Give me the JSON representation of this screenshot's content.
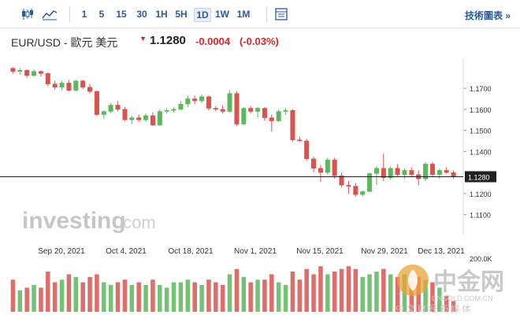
{
  "toolbar": {
    "candle_icon": "candlestick-icon",
    "area_icon": "area-chart-icon",
    "timeframes": [
      "1",
      "5",
      "15",
      "30",
      "1H",
      "5H",
      "1D",
      "1W",
      "1M"
    ],
    "active_timeframe": "1D",
    "table_icon": "table-icon",
    "tools_label": "技術圖表 »"
  },
  "header": {
    "symbol": "EUR/USD - 歐元 美元",
    "price": "1.1280",
    "change": "-0.0004",
    "change_pct": "(-0.03%)",
    "direction": "down"
  },
  "colors": {
    "up": "#5cb85c",
    "down": "#d9534f",
    "link": "#2a5b9a",
    "price_line": "#222222"
  },
  "chart_data": {
    "type": "candlestick",
    "price_axis_ticks": [
      "1.1700",
      "1.1600",
      "1.1500",
      "1.1400",
      "1.1200",
      "1.1100"
    ],
    "price_label": "1.1280",
    "volume_axis_label": "200.0K",
    "date_ticks": [
      "Sep 20, 2021",
      "Oct 4, 2021",
      "Oct 18, 2021",
      "Nov 1, 2021",
      "Nov 15, 2021",
      "Nov 29, 2021",
      "Dec 13, 2021"
    ],
    "ylim": [
      1.105,
      1.182
    ],
    "candles": [
      [
        1.1795,
        1.18,
        1.177,
        1.178
      ],
      [
        1.178,
        1.1795,
        1.1765,
        1.1785
      ],
      [
        1.1785,
        1.179,
        1.175,
        1.176
      ],
      [
        1.176,
        1.179,
        1.1755,
        1.178
      ],
      [
        1.178,
        1.1785,
        1.1755,
        1.177
      ],
      [
        1.177,
        1.1775,
        1.171,
        1.172
      ],
      [
        1.172,
        1.1735,
        1.1695,
        1.1705
      ],
      [
        1.1705,
        1.1735,
        1.169,
        1.1725
      ],
      [
        1.1725,
        1.174,
        1.1685,
        1.169
      ],
      [
        1.169,
        1.174,
        1.1685,
        1.1735
      ],
      [
        1.1735,
        1.174,
        1.1695,
        1.1705
      ],
      [
        1.1705,
        1.172,
        1.1675,
        1.1685
      ],
      [
        1.1685,
        1.169,
        1.157,
        1.1575
      ],
      [
        1.1575,
        1.1595,
        1.1555,
        1.159
      ],
      [
        1.159,
        1.163,
        1.158,
        1.162
      ],
      [
        1.162,
        1.164,
        1.159,
        1.16
      ],
      [
        1.16,
        1.161,
        1.1545,
        1.155
      ],
      [
        1.155,
        1.157,
        1.153,
        1.156
      ],
      [
        1.156,
        1.1575,
        1.154,
        1.155
      ],
      [
        1.155,
        1.158,
        1.154,
        1.157
      ],
      [
        1.157,
        1.1585,
        1.152,
        1.1525
      ],
      [
        1.1525,
        1.16,
        1.152,
        1.159
      ],
      [
        1.159,
        1.1605,
        1.158,
        1.1595
      ],
      [
        1.1595,
        1.161,
        1.1585,
        1.16
      ],
      [
        1.16,
        1.164,
        1.1595,
        1.1625
      ],
      [
        1.1625,
        1.1665,
        1.161,
        1.165
      ],
      [
        1.165,
        1.1665,
        1.1625,
        1.164
      ],
      [
        1.164,
        1.167,
        1.163,
        1.166
      ],
      [
        1.166,
        1.1665,
        1.1595,
        1.1605
      ],
      [
        1.1605,
        1.1615,
        1.159,
        1.16
      ],
      [
        1.16,
        1.162,
        1.158,
        1.159
      ],
      [
        1.159,
        1.169,
        1.1585,
        1.1675
      ],
      [
        1.1675,
        1.1685,
        1.152,
        1.153
      ],
      [
        1.153,
        1.161,
        1.1525,
        1.1605
      ],
      [
        1.1605,
        1.1615,
        1.158,
        1.159
      ],
      [
        1.159,
        1.161,
        1.156,
        1.1605
      ],
      [
        1.1605,
        1.161,
        1.1545,
        1.156
      ],
      [
        1.156,
        1.1575,
        1.1495,
        1.1545
      ],
      [
        1.1545,
        1.16,
        1.154,
        1.159
      ],
      [
        1.159,
        1.1605,
        1.1575,
        1.1595
      ],
      [
        1.1595,
        1.16,
        1.1445,
        1.1455
      ],
      [
        1.1455,
        1.147,
        1.1445,
        1.145
      ],
      [
        1.145,
        1.146,
        1.1355,
        1.1365
      ],
      [
        1.1365,
        1.1375,
        1.13,
        1.132
      ],
      [
        1.132,
        1.1335,
        1.1255,
        1.13
      ],
      [
        1.13,
        1.137,
        1.129,
        1.136
      ],
      [
        1.136,
        1.137,
        1.127,
        1.1285
      ],
      [
        1.1285,
        1.13,
        1.123,
        1.124
      ],
      [
        1.124,
        1.126,
        1.12,
        1.1235
      ],
      [
        1.1235,
        1.125,
        1.1185,
        1.1195
      ],
      [
        1.1195,
        1.1215,
        1.1185,
        1.121
      ],
      [
        1.121,
        1.13,
        1.1205,
        1.1295
      ],
      [
        1.1295,
        1.133,
        1.124,
        1.132
      ],
      [
        1.132,
        1.139,
        1.126,
        1.1275
      ],
      [
        1.1275,
        1.133,
        1.1265,
        1.132
      ],
      [
        1.132,
        1.134,
        1.128,
        1.129
      ],
      [
        1.129,
        1.132,
        1.127,
        1.131
      ],
      [
        1.131,
        1.1325,
        1.128,
        1.129
      ],
      [
        1.129,
        1.131,
        1.124,
        1.127
      ],
      [
        1.127,
        1.135,
        1.126,
        1.134
      ],
      [
        1.134,
        1.135,
        1.128,
        1.129
      ],
      [
        1.129,
        1.132,
        1.127,
        1.131
      ],
      [
        1.131,
        1.1325,
        1.1295,
        1.13
      ],
      [
        1.13,
        1.131,
        1.127,
        1.128
      ]
    ],
    "volumes": [
      0.6,
      0.4,
      0.45,
      0.5,
      0.45,
      0.75,
      0.55,
      0.6,
      0.7,
      0.65,
      0.55,
      0.65,
      0.7,
      0.55,
      0.5,
      0.55,
      0.6,
      0.5,
      0.55,
      0.5,
      0.6,
      0.5,
      0.45,
      0.55,
      0.55,
      0.6,
      0.55,
      0.5,
      0.6,
      0.55,
      0.5,
      0.7,
      0.8,
      0.65,
      0.55,
      0.6,
      0.6,
      0.7,
      0.55,
      0.5,
      0.75,
      0.6,
      0.8,
      0.7,
      0.85,
      0.7,
      0.75,
      0.8,
      0.85,
      0.8,
      0.65,
      0.7,
      0.75,
      0.8,
      0.7,
      0.65,
      0.7,
      0.6,
      0.65,
      0.6,
      0.55,
      0.45,
      0.3,
      0.2
    ]
  },
  "watermark": {
    "brand": "investing",
    "brand_suffix": ".com",
    "cn_logo": "中金网",
    "cn_sub": "中 文 财 经 新 媒 体",
    "cn_url": "CNGOLD.COM.CN"
  }
}
